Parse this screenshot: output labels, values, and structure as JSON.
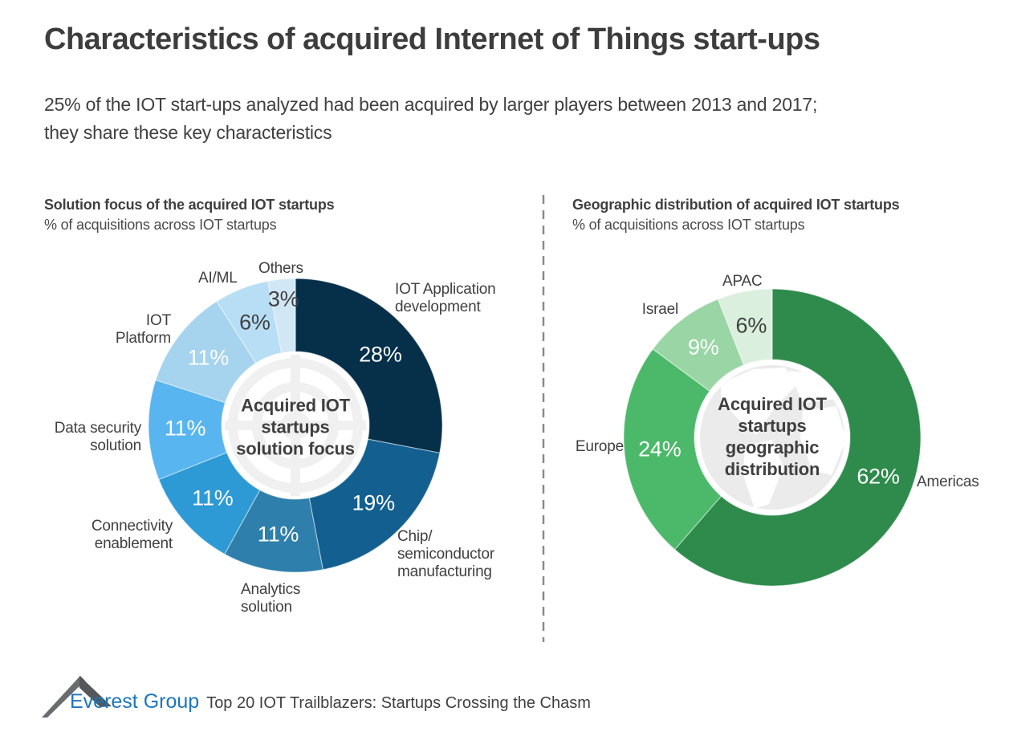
{
  "page": {
    "title": "Characteristics of acquired Internet of Things start-ups",
    "subtitle": "25% of the IOT start-ups analyzed had been acquired by larger players between 2013 and 2017;\nthey share these key characteristics"
  },
  "chart_data": [
    {
      "id": "solution-focus",
      "type": "pie",
      "subtype": "donut",
      "title": "Solution focus of the acquired IOT startups",
      "subtitle": "% of acquisitions across IOT startups",
      "center_label": "Acquired IOT\nstartups\nsolution focus",
      "unit": "%",
      "start_angle_deg": 0,
      "direction": "clockwise",
      "slices": [
        {
          "label": "IOT Application\ndevelopment",
          "value": 28,
          "color": "#062f4a",
          "value_label_color": "#ffffff"
        },
        {
          "label": "Chip/\nsemiconductor\nmanufacturing",
          "value": 19,
          "color": "#136090",
          "value_label_color": "#ffffff"
        },
        {
          "label": "Analytics\nsolution",
          "value": 11,
          "color": "#2e7fab",
          "value_label_color": "#ffffff"
        },
        {
          "label": "Connectivity\nenablement",
          "value": 11,
          "color": "#2d9ad5",
          "value_label_color": "#ffffff"
        },
        {
          "label": "Data security\nsolution",
          "value": 11,
          "color": "#58b5ef",
          "value_label_color": "#ffffff"
        },
        {
          "label": "IOT\nPlatform",
          "value": 11,
          "color": "#a6d3ee",
          "value_label_color": "#ffffff"
        },
        {
          "label": "AI/ML",
          "value": 6,
          "color": "#b7def5",
          "value_label_color": "#404040"
        },
        {
          "label": "Others",
          "value": 3,
          "color": "#d2e7f6",
          "value_label_color": "#404040"
        }
      ]
    },
    {
      "id": "geographic-distribution",
      "type": "pie",
      "subtype": "donut",
      "title": "Geographic distribution of acquired IOT startups",
      "subtitle": "% of acquisitions across IOT startups",
      "center_label": "Acquired IOT\nstartups\ngeographic\ndistribution",
      "unit": "%",
      "start_angle_deg": 0,
      "direction": "clockwise",
      "slices": [
        {
          "label": "Americas",
          "value": 62,
          "color": "#2e8b4c",
          "value_label_color": "#ffffff"
        },
        {
          "label": "Europe",
          "value": 24,
          "color": "#4cb96a",
          "value_label_color": "#ffffff"
        },
        {
          "label": "Israel",
          "value": 9,
          "color": "#9ad6a5",
          "value_label_color": "#ffffff"
        },
        {
          "label": "APAC",
          "value": 6,
          "color": "#daefdd",
          "value_label_color": "#404040"
        }
      ]
    }
  ],
  "footer": {
    "logo_text": "Everest Group",
    "tagline": "Top 20 IOT Trailblazers: Startups Crossing the Chasm"
  },
  "colors": {
    "text": "#404040",
    "logo_blue": "#1c76bc",
    "mountain_gray": "#6a6c6f",
    "divider": "#8a8a8a"
  }
}
